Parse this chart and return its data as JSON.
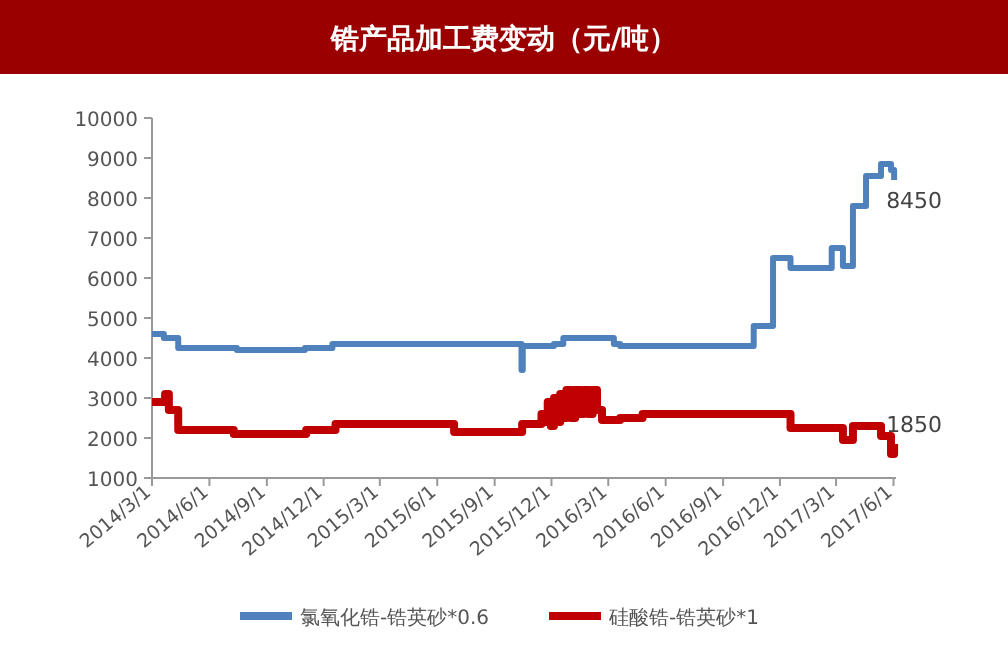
{
  "chart_data": {
    "type": "step",
    "title": "锆产品加工费变动（元/吨）",
    "legend": "bottom",
    "grid": false,
    "marker": "none",
    "line_style": "solid",
    "xlim": [
      "2014-03-01",
      "2017-06-05"
    ],
    "xticks": [
      {
        "value": "2014-03-01",
        "label": "2014/3/1"
      },
      {
        "value": "2014-06-01",
        "label": "2014/6/1"
      },
      {
        "value": "2014-09-01",
        "label": "2014/9/1"
      },
      {
        "value": "2014-12-01",
        "label": "2014/12/1"
      },
      {
        "value": "2015-03-01",
        "label": "2015/3/1"
      },
      {
        "value": "2015-06-01",
        "label": "2015/6/1"
      },
      {
        "value": "2015-09-01",
        "label": "2015/9/1"
      },
      {
        "value": "2015-12-01",
        "label": "2015/12/1"
      },
      {
        "value": "2016-03-01",
        "label": "2016/3/1"
      },
      {
        "value": "2016-06-01",
        "label": "2016/6/1"
      },
      {
        "value": "2016-09-01",
        "label": "2016/9/1"
      },
      {
        "value": "2016-12-01",
        "label": "2016/12/1"
      },
      {
        "value": "2017-03-01",
        "label": "2017/3/1"
      },
      {
        "value": "2017-06-01",
        "label": "2017/6/1"
      }
    ],
    "ylim": [
      1000,
      10000
    ],
    "yticks": [
      1000,
      2000,
      3000,
      4000,
      5000,
      6000,
      7000,
      8000,
      9000,
      10000
    ],
    "series": [
      {
        "name": "氯氧化锆-锆英砂*0.6",
        "color": "#4f81bd",
        "x": [
          "2014-03-01",
          "2014-03-20",
          "2014-04-12",
          "2014-07-15",
          "2014-11-01",
          "2014-12-15",
          "2015-10-14",
          "2015-10-16",
          "2015-12-05",
          "2015-12-20",
          "2016-03-10",
          "2016-03-20",
          "2016-10-20",
          "2016-11-20",
          "2016-12-18",
          "2017-02-22",
          "2017-03-12",
          "2017-03-28",
          "2017-04-18",
          "2017-05-12",
          "2017-05-28",
          "2017-06-02"
        ],
        "values": [
          4600,
          4500,
          4250,
          4200,
          4250,
          4350,
          3700,
          4300,
          4350,
          4500,
          4350,
          4300,
          4800,
          6500,
          6250,
          6750,
          6300,
          7800,
          8550,
          8850,
          8700,
          8450
        ]
      },
      {
        "name": "硅酸锆-锆英砂*1",
        "color": "#c00000",
        "x": [
          "2014-03-01",
          "2014-03-22",
          "2014-03-28",
          "2014-04-12",
          "2014-07-10",
          "2014-11-03",
          "2014-12-20",
          "2015-06-28",
          "2015-10-15",
          "2015-11-15",
          "2015-11-20",
          "2015-11-25",
          "2015-11-30",
          "2015-12-05",
          "2015-12-10",
          "2015-12-15",
          "2015-12-20",
          "2015-12-25",
          "2016-01-01",
          "2016-01-08",
          "2016-01-15",
          "2016-01-22",
          "2016-01-29",
          "2016-02-05",
          "2016-02-12",
          "2016-02-20",
          "2016-03-20",
          "2016-04-25",
          "2016-12-18",
          "2017-03-12",
          "2017-03-28",
          "2017-05-12",
          "2017-05-28",
          "2017-06-02"
        ],
        "values": [
          2900,
          3100,
          2700,
          2200,
          2100,
          2200,
          2350,
          2150,
          2350,
          2600,
          2400,
          2900,
          2300,
          3000,
          2400,
          3100,
          2500,
          3200,
          2500,
          3200,
          2600,
          3200,
          2600,
          3200,
          2700,
          2450,
          2500,
          2600,
          2250,
          1950,
          2300,
          2050,
          1600,
          1850
        ]
      }
    ],
    "annotations": [
      {
        "text": "8450",
        "x": "2017-06-02",
        "y": 8450
      },
      {
        "text": "1850",
        "x": "2017-06-02",
        "y": 1850
      }
    ]
  }
}
